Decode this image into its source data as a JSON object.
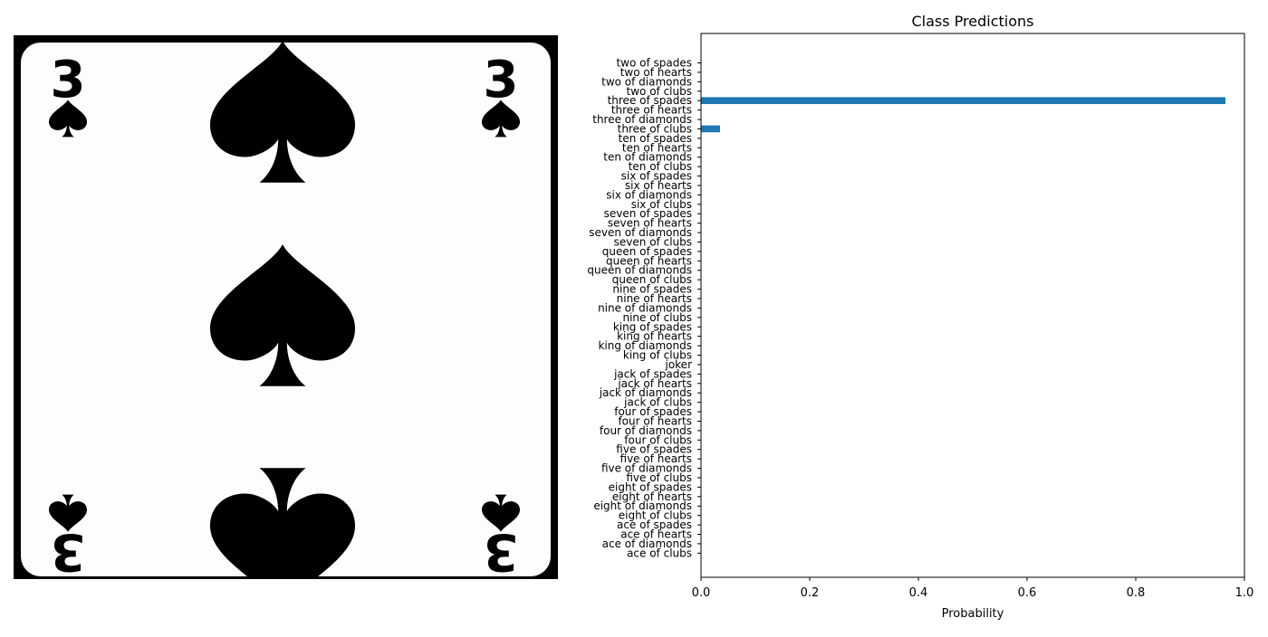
{
  "image_panel": {
    "card_rank": "3",
    "card_suit_icon": "spade-icon"
  },
  "chart_data": {
    "type": "bar",
    "orientation": "horizontal",
    "title": "Class Predictions",
    "xlabel": "Probability",
    "ylabel": "",
    "xlim": [
      0,
      1.0
    ],
    "xticks": [
      "0.0",
      "0.2",
      "0.4",
      "0.6",
      "0.8",
      "1.0"
    ],
    "grid": false,
    "categories": [
      "two of spades",
      "two of hearts",
      "two of diamonds",
      "two of clubs",
      "three of spades",
      "three of hearts",
      "three of diamonds",
      "three of clubs",
      "ten of spades",
      "ten of hearts",
      "ten of diamonds",
      "ten of clubs",
      "six of spades",
      "six of hearts",
      "six of diamonds",
      "six of clubs",
      "seven of spades",
      "seven of hearts",
      "seven of diamonds",
      "seven of clubs",
      "queen of spades",
      "queen of hearts",
      "queen of diamonds",
      "queen of clubs",
      "nine of spades",
      "nine of hearts",
      "nine of diamonds",
      "nine of clubs",
      "king of spades",
      "king of hearts",
      "king of diamonds",
      "king of clubs",
      "joker",
      "jack of spades",
      "jack of hearts",
      "jack of diamonds",
      "jack of clubs",
      "four of spades",
      "four of hearts",
      "four of diamonds",
      "four of clubs",
      "five of spades",
      "five of hearts",
      "five of diamonds",
      "five of clubs",
      "eight of spades",
      "eight of hearts",
      "eight of diamonds",
      "eight of clubs",
      "ace of spades",
      "ace of hearts",
      "ace of diamonds",
      "ace of clubs"
    ],
    "values": [
      0,
      0,
      0,
      0,
      0.965,
      0,
      0,
      0.035,
      0,
      0,
      0,
      0,
      0,
      0,
      0,
      0,
      0,
      0,
      0,
      0,
      0,
      0,
      0,
      0,
      0,
      0,
      0,
      0,
      0,
      0,
      0,
      0,
      0,
      0,
      0,
      0,
      0,
      0,
      0,
      0,
      0,
      0,
      0,
      0,
      0,
      0,
      0,
      0,
      0,
      0,
      0,
      0,
      0
    ],
    "bar_color": "#1f77b4"
  }
}
